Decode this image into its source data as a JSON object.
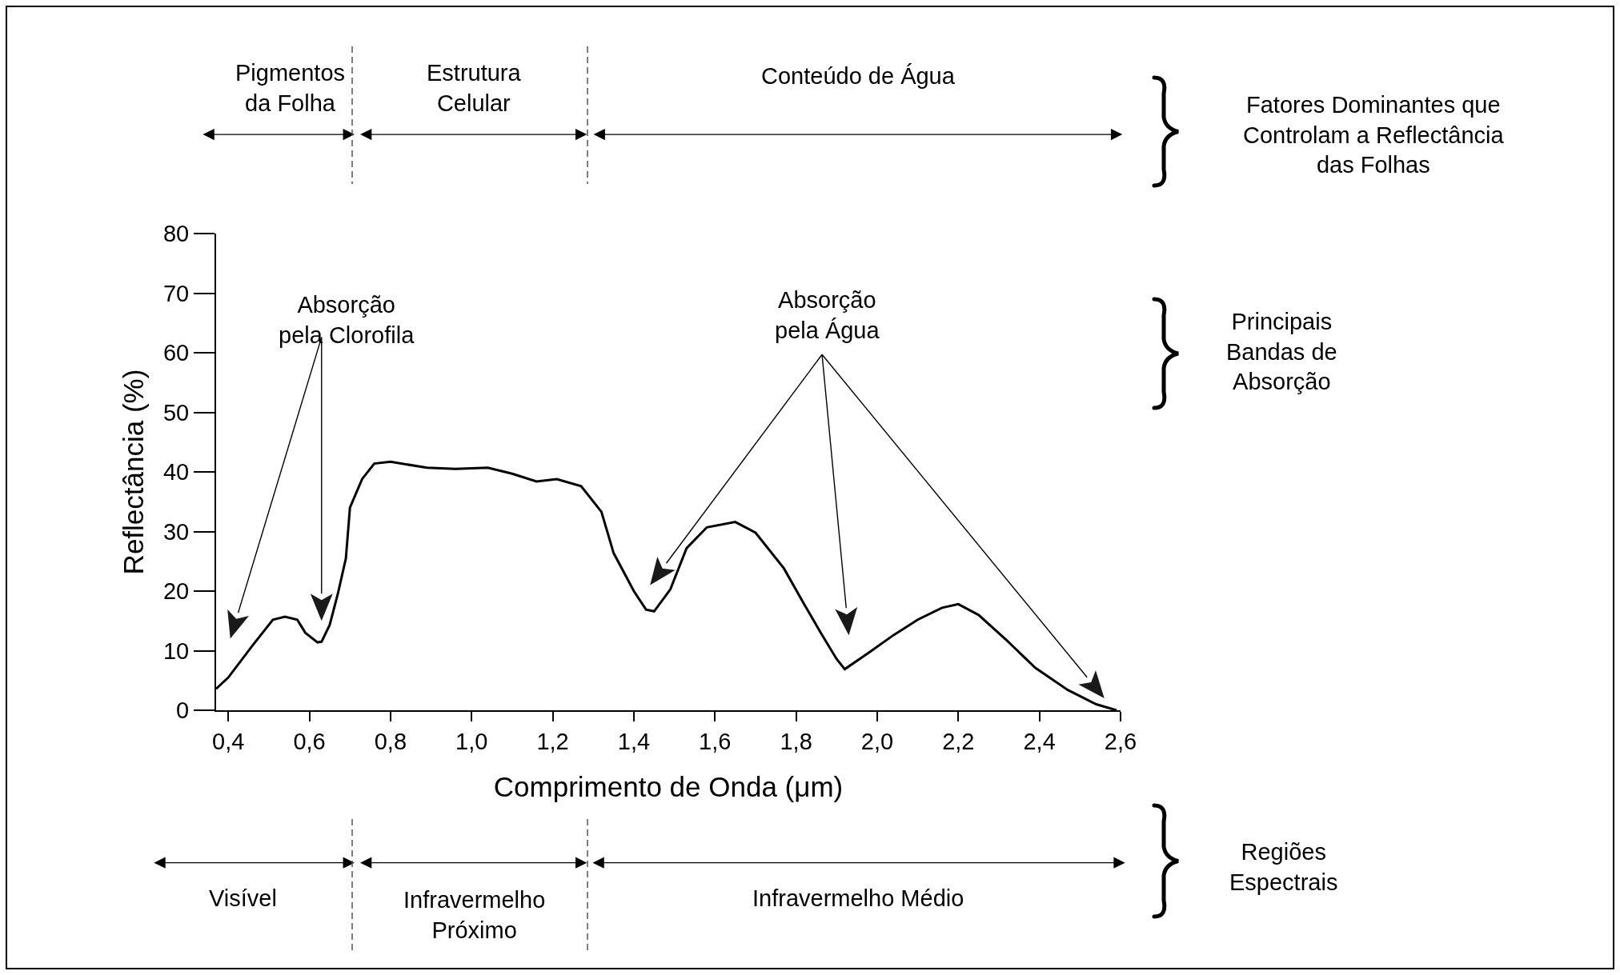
{
  "chart_data": {
    "type": "line",
    "xlabel": "Comprimento de Onda (μm)",
    "ylabel": "Reflectância (%)",
    "x": [
      0.37,
      0.4,
      0.46,
      0.51,
      0.54,
      0.57,
      0.59,
      0.62,
      0.63,
      0.65,
      0.67,
      0.69,
      0.7,
      0.73,
      0.76,
      0.8,
      0.89,
      0.96,
      1.04,
      1.1,
      1.16,
      1.21,
      1.27,
      1.32,
      1.35,
      1.4,
      1.43,
      1.45,
      1.49,
      1.53,
      1.58,
      1.65,
      1.7,
      1.77,
      1.82,
      1.86,
      1.9,
      1.92,
      1.98,
      2.04,
      2.1,
      2.16,
      2.2,
      2.25,
      2.32,
      2.39,
      2.47,
      2.54,
      2.59
    ],
    "series": [
      {
        "color": "#000000",
        "values": [
          3.6,
          5.5,
          10.9,
          15.2,
          15.7,
          15.2,
          13,
          11.4,
          11.5,
          14.3,
          19.5,
          25.5,
          34,
          38.8,
          41.4,
          41.7,
          40.7,
          40.5,
          40.7,
          39.7,
          38.4,
          38.8,
          37.6,
          33.3,
          26.4,
          20,
          16.9,
          16.6,
          20.3,
          27.2,
          30.7,
          31.6,
          29.8,
          23.8,
          17.8,
          13.1,
          8.6,
          6.9,
          9.7,
          12.6,
          15.2,
          17.2,
          17.8,
          16,
          11.7,
          7.1,
          3.4,
          1,
          0
        ]
      }
    ],
    "xlim": [
      0.37,
      2.6
    ],
    "ylim": [
      0,
      80
    ],
    "xticks": [
      {
        "value": 0.4,
        "label": "0,4"
      },
      {
        "value": 0.6,
        "label": "0,6"
      },
      {
        "value": 0.8,
        "label": "0,8"
      },
      {
        "value": 1.0,
        "label": "1,0"
      },
      {
        "value": 1.2,
        "label": "1,2"
      },
      {
        "value": 1.4,
        "label": "1,4"
      },
      {
        "value": 1.6,
        "label": "1,6"
      },
      {
        "value": 1.8,
        "label": "1,8"
      },
      {
        "value": 2.0,
        "label": "2,0"
      },
      {
        "value": 2.2,
        "label": "2,2"
      },
      {
        "value": 2.4,
        "label": "2,4"
      },
      {
        "value": 2.6,
        "label": "2,6"
      }
    ],
    "yticks": [
      0,
      10,
      20,
      30,
      40,
      50,
      60,
      70,
      80
    ],
    "marker": "none",
    "line_style": "solid",
    "annotations": [
      "Pigmentos\nda Folha",
      "Estrutura\nCelular",
      "Conteúdo de Água",
      "Fatores Dominantes que\nControlam a Reflectância\ndas Folhas",
      "Absorção\npela Clorofila",
      "Absorção\npela Água",
      "Principais\nBandas de\nAbsorção",
      "Visível",
      "Infravermelho\nPróximo",
      "Infravermelho Médio",
      "Regiões\nEspectrais"
    ]
  }
}
